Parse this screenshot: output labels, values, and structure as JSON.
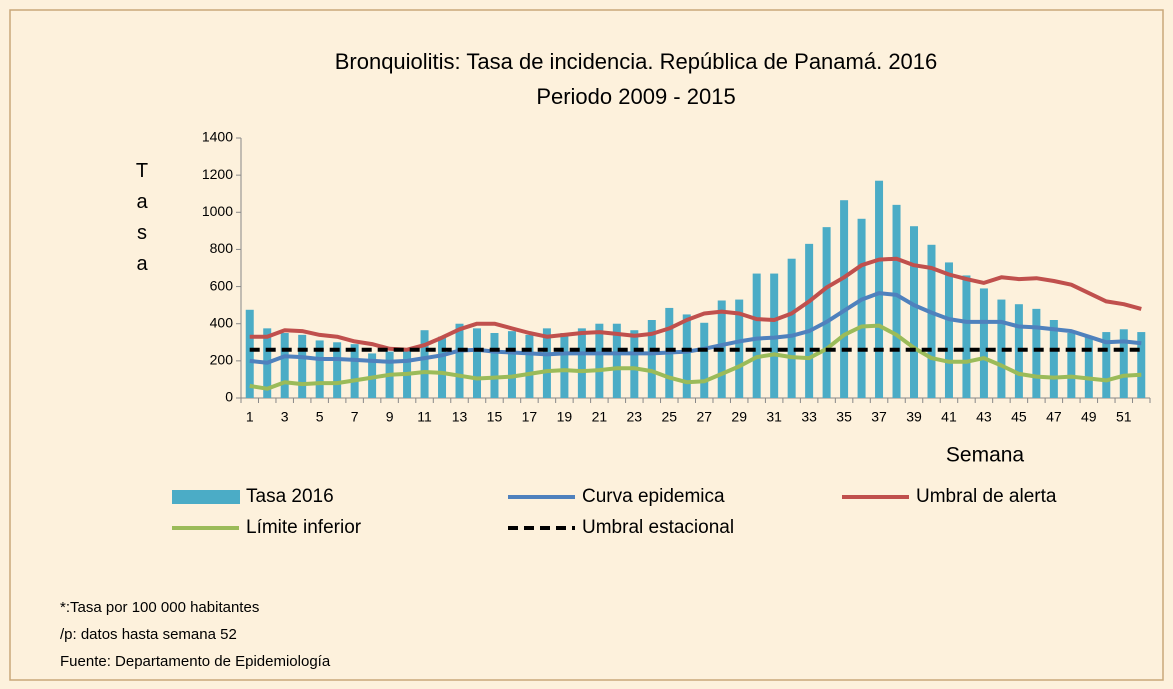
{
  "chart_data": {
    "type": "bar",
    "title": "Bronquiolitis: Tasa de incidencia. República de Panamá. 2016",
    "subtitle": "Periodo 2009 - 2015",
    "y_label": "Tasa",
    "x_label": "Semana",
    "categories": [
      1,
      null,
      3,
      null,
      5,
      null,
      7,
      null,
      9,
      null,
      11,
      null,
      13,
      null,
      15,
      null,
      17,
      null,
      19,
      null,
      21,
      null,
      23,
      null,
      25,
      null,
      27,
      null,
      29,
      null,
      31,
      null,
      33,
      null,
      35,
      null,
      37,
      null,
      39,
      null,
      41,
      null,
      43,
      null,
      45,
      null,
      47,
      null,
      49,
      null,
      51,
      null
    ],
    "ylim": [
      0,
      1400
    ],
    "yticks": [
      0,
      200,
      400,
      600,
      800,
      1000,
      1200,
      1400
    ],
    "series": [
      {
        "name": "Tasa 2016",
        "type": "bar",
        "color": "#4bacc6",
        "values": [
          475,
          375,
          350,
          340,
          310,
          300,
          290,
          240,
          250,
          260,
          365,
          330,
          400,
          375,
          350,
          360,
          340,
          375,
          350,
          375,
          400,
          400,
          365,
          420,
          485,
          450,
          405,
          525,
          530,
          670,
          670,
          750,
          830,
          920,
          1065,
          965,
          1170,
          1040,
          925,
          825,
          730,
          660,
          590,
          530,
          505,
          480,
          420,
          350,
          330,
          355,
          370,
          355
        ]
      },
      {
        "name": "Curva epidemica",
        "type": "line",
        "color": "#4f81bd",
        "values": [
          200,
          190,
          225,
          220,
          210,
          210,
          205,
          200,
          195,
          200,
          215,
          230,
          255,
          260,
          250,
          245,
          240,
          235,
          240,
          240,
          240,
          240,
          240,
          240,
          245,
          250,
          265,
          285,
          305,
          320,
          325,
          335,
          360,
          410,
          470,
          530,
          565,
          555,
          500,
          460,
          425,
          410,
          410,
          410,
          385,
          380,
          370,
          360,
          330,
          300,
          305,
          295
        ]
      },
      {
        "name": "Umbral de alerta",
        "type": "line",
        "color": "#c0504d",
        "values": [
          330,
          330,
          365,
          360,
          340,
          330,
          305,
          290,
          265,
          260,
          285,
          325,
          370,
          400,
          400,
          375,
          350,
          330,
          340,
          350,
          355,
          345,
          335,
          345,
          375,
          420,
          455,
          465,
          455,
          425,
          420,
          455,
          520,
          595,
          650,
          715,
          745,
          750,
          715,
          700,
          665,
          640,
          620,
          650,
          640,
          645,
          630,
          610,
          565,
          520,
          505,
          480
        ]
      },
      {
        "name": "Límite inferior",
        "type": "line",
        "color": "#9bbb59",
        "values": [
          65,
          50,
          85,
          75,
          80,
          80,
          95,
          110,
          125,
          130,
          140,
          135,
          120,
          105,
          110,
          115,
          130,
          145,
          150,
          145,
          150,
          160,
          160,
          145,
          110,
          85,
          90,
          130,
          170,
          220,
          235,
          220,
          215,
          265,
          340,
          385,
          390,
          340,
          270,
          215,
          195,
          195,
          215,
          175,
          130,
          115,
          110,
          115,
          105,
          95,
          120,
          125
        ]
      },
      {
        "name": "Umbral estacional",
        "type": "line",
        "color": "#000000",
        "dashed": true,
        "values": [
          260,
          260,
          260,
          260,
          260,
          260,
          260,
          260,
          260,
          260,
          260,
          260,
          260,
          260,
          260,
          260,
          260,
          260,
          260,
          260,
          260,
          260,
          260,
          260,
          260,
          260,
          260,
          260,
          260,
          260,
          260,
          260,
          260,
          260,
          260,
          260,
          260,
          260,
          260,
          260,
          260,
          260,
          260,
          260,
          260,
          260,
          260,
          260,
          260,
          260,
          260,
          260
        ]
      }
    ],
    "notes": [
      "*:Tasa por 100 000 habitantes",
      "/p: datos hasta semana 52",
      "Fuente: Departamento de Epidemiología"
    ]
  }
}
